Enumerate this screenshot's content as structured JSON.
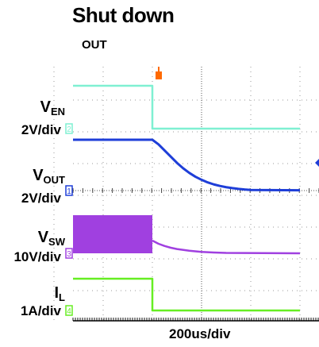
{
  "chart_data": {
    "type": "line",
    "title": "Shut down",
    "subtitle": "OUT",
    "xlabel": "200us/div",
    "grid": true,
    "series": [
      {
        "name": "VEN",
        "name_main": "V",
        "name_sub": "EN",
        "scale": "2V/div",
        "marker": "2",
        "color": "#7ff0d2",
        "points": [
          [
            -500,
            5
          ],
          [
            0,
            5
          ],
          [
            0,
            0
          ],
          [
            600,
            0
          ]
        ]
      },
      {
        "name": "VOUT",
        "name_main": "V",
        "name_sub": "OUT",
        "scale": "2V/div",
        "marker": "1",
        "color": "#1e3ed8",
        "points": [
          [
            -500,
            3.3
          ],
          [
            0,
            3.3
          ],
          [
            25,
            3.0
          ],
          [
            50,
            2.6
          ],
          [
            75,
            2.2
          ],
          [
            100,
            1.8
          ],
          [
            125,
            1.45
          ],
          [
            150,
            1.15
          ],
          [
            175,
            0.9
          ],
          [
            200,
            0.7
          ],
          [
            225,
            0.53
          ],
          [
            250,
            0.4
          ],
          [
            275,
            0.3
          ],
          [
            300,
            0.22
          ],
          [
            325,
            0.16
          ],
          [
            350,
            0.11
          ],
          [
            375,
            0.07
          ],
          [
            400,
            0.04
          ],
          [
            600,
            0.02
          ]
        ]
      },
      {
        "name": "VSW",
        "name_main": "V",
        "name_sub": "SW",
        "scale": "10V/div",
        "marker": "3",
        "color": "#a040e0",
        "band": [
          [
            -500,
            0,
            12
          ],
          [
            0,
            0,
            12
          ]
        ],
        "points": [
          [
            0,
            4
          ],
          [
            25,
            3.0
          ],
          [
            50,
            2.3
          ],
          [
            75,
            1.75
          ],
          [
            100,
            1.35
          ],
          [
            150,
            0.8
          ],
          [
            200,
            0.45
          ],
          [
            250,
            0.25
          ],
          [
            300,
            0.12
          ],
          [
            600,
            0
          ]
        ]
      },
      {
        "name": "IL",
        "name_main": "I",
        "name_sub": "L",
        "scale": "1A/div",
        "marker": "4",
        "color": "#66ee22",
        "points": [
          [
            -500,
            1.1
          ],
          [
            0,
            1.1
          ],
          [
            0,
            0
          ],
          [
            600,
            0
          ]
        ]
      }
    ]
  }
}
